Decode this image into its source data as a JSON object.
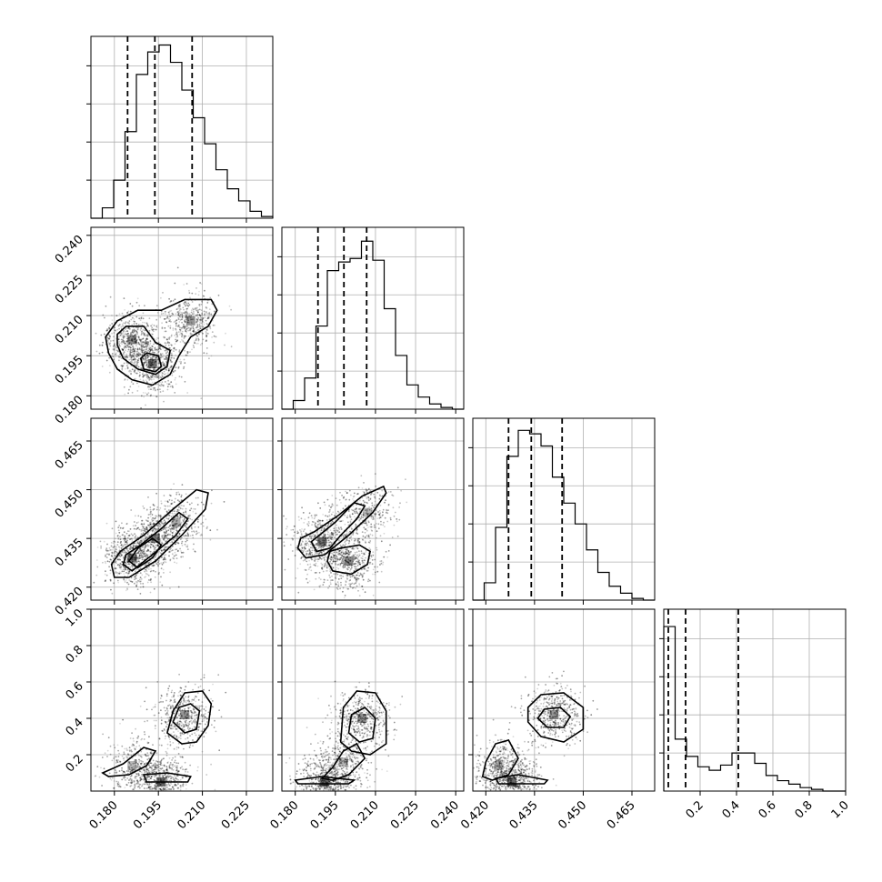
{
  "chart_data": {
    "type": "corner",
    "grid": true,
    "parameters": [
      {
        "range": [
          0.172,
          0.234
        ],
        "ticks": [
          "0.180",
          "0.195",
          "0.210",
          "0.225"
        ],
        "tick_values": [
          0.18,
          0.195,
          0.21,
          0.225
        ],
        "quantiles": [
          0.1845,
          0.1938,
          0.2065
        ],
        "histogram": [
          0.0,
          0.06,
          0.22,
          0.5,
          0.83,
          0.96,
          1.0,
          0.9,
          0.74,
          0.58,
          0.43,
          0.28,
          0.17,
          0.1,
          0.04,
          0.01
        ]
      },
      {
        "range": [
          0.175,
          0.243
        ],
        "ticks": [
          "0.180",
          "0.195",
          "0.210",
          "0.225",
          "0.240"
        ],
        "tick_values": [
          0.18,
          0.195,
          0.21,
          0.225,
          0.24
        ],
        "quantiles": [
          0.1885,
          0.1982,
          0.2067
        ],
        "histogram": [
          0.0,
          0.05,
          0.18,
          0.48,
          0.8,
          0.85,
          0.87,
          0.97,
          0.86,
          0.58,
          0.31,
          0.14,
          0.07,
          0.03,
          0.01,
          0.0
        ]
      },
      {
        "range": [
          0.416,
          0.472
        ],
        "ticks": [
          "0.420",
          "0.435",
          "0.450",
          "0.465"
        ],
        "tick_values": [
          0.42,
          0.435,
          0.45,
          0.465
        ],
        "quantiles": [
          0.427,
          0.434,
          0.4435
        ],
        "histogram": [
          0.0,
          0.1,
          0.42,
          0.83,
          0.98,
          0.96,
          0.89,
          0.71,
          0.56,
          0.44,
          0.29,
          0.16,
          0.08,
          0.04,
          0.01,
          0.0
        ]
      },
      {
        "range": [
          0.0,
          1.0
        ],
        "ticks": [
          "0.2",
          "0.4",
          "0.6",
          "0.8",
          "1.0"
        ],
        "tick_values": [
          0.2,
          0.4,
          0.6,
          0.8,
          1.0
        ],
        "y_ticks": [
          "0.2",
          "0.4",
          "0.6",
          "0.8",
          "1.0"
        ],
        "quantiles": [
          0.025,
          0.12,
          0.41
        ],
        "histogram": [
          0.95,
          0.3,
          0.2,
          0.14,
          0.12,
          0.15,
          0.22,
          0.22,
          0.16,
          0.09,
          0.06,
          0.04,
          0.02,
          0.01,
          0.0,
          0.0
        ]
      }
    ],
    "pairs": [
      {
        "x": 0,
        "y": 1,
        "modes": [
          {
            "x": 0.186,
            "y": 0.201,
            "w": 1.0
          },
          {
            "x": 0.193,
            "y": 0.192,
            "w": 1.2
          },
          {
            "x": 0.206,
            "y": 0.208,
            "w": 0.9
          }
        ],
        "contours": [
          [
            [
              0.178,
              0.196
            ],
            [
              0.181,
              0.19
            ],
            [
              0.186,
              0.186
            ],
            [
              0.193,
              0.184
            ],
            [
              0.199,
              0.188
            ],
            [
              0.202,
              0.195
            ],
            [
              0.206,
              0.202
            ],
            [
              0.212,
              0.206
            ],
            [
              0.215,
              0.212
            ],
            [
              0.213,
              0.216
            ],
            [
              0.204,
              0.216
            ],
            [
              0.196,
              0.212
            ],
            [
              0.188,
              0.212
            ],
            [
              0.181,
              0.208
            ],
            [
              0.177,
              0.202
            ]
          ],
          [
            [
              0.181,
              0.199
            ],
            [
              0.183,
              0.194
            ],
            [
              0.188,
              0.19
            ],
            [
              0.194,
              0.188
            ],
            [
              0.198,
              0.191
            ],
            [
              0.199,
              0.197
            ],
            [
              0.194,
              0.2
            ],
            [
              0.19,
              0.206
            ],
            [
              0.184,
              0.206
            ],
            [
              0.181,
              0.203
            ]
          ],
          [
            [
              0.189,
              0.194
            ],
            [
              0.19,
              0.19
            ],
            [
              0.194,
              0.189
            ],
            [
              0.196,
              0.191
            ],
            [
              0.195,
              0.195
            ],
            [
              0.191,
              0.196
            ]
          ]
        ]
      },
      {
        "x": 0,
        "y": 2,
        "modes": [
          {
            "x": 0.186,
            "y": 0.429,
            "w": 1.2
          },
          {
            "x": 0.194,
            "y": 0.435,
            "w": 1.0
          },
          {
            "x": 0.201,
            "y": 0.44,
            "w": 0.7
          }
        ],
        "contours": [
          [
            [
              0.179,
              0.427
            ],
            [
              0.18,
              0.423
            ],
            [
              0.185,
              0.423
            ],
            [
              0.194,
              0.428
            ],
            [
              0.203,
              0.436
            ],
            [
              0.211,
              0.444
            ],
            [
              0.212,
              0.449
            ],
            [
              0.208,
              0.45
            ],
            [
              0.2,
              0.444
            ],
            [
              0.19,
              0.436
            ],
            [
              0.182,
              0.431
            ]
          ],
          [
            [
              0.183,
              0.427
            ],
            [
              0.186,
              0.425
            ],
            [
              0.193,
              0.43
            ],
            [
              0.201,
              0.436
            ],
            [
              0.205,
              0.441
            ],
            [
              0.202,
              0.443
            ],
            [
              0.196,
              0.438
            ],
            [
              0.189,
              0.433
            ],
            [
              0.184,
              0.43
            ]
          ],
          [
            [
              0.185,
              0.428
            ],
            [
              0.188,
              0.426
            ],
            [
              0.193,
              0.429
            ],
            [
              0.196,
              0.433
            ],
            [
              0.193,
              0.435
            ],
            [
              0.188,
              0.432
            ]
          ]
        ]
      },
      {
        "x": 1,
        "y": 2,
        "modes": [
          {
            "x": 0.19,
            "y": 0.434,
            "w": 1.2
          },
          {
            "x": 0.2,
            "y": 0.428,
            "w": 1.0
          },
          {
            "x": 0.207,
            "y": 0.443,
            "w": 0.6
          }
        ],
        "contours": [
          [
            [
              0.181,
              0.432
            ],
            [
              0.184,
              0.429
            ],
            [
              0.191,
              0.43
            ],
            [
              0.2,
              0.436
            ],
            [
              0.209,
              0.443
            ],
            [
              0.214,
              0.449
            ],
            [
              0.213,
              0.451
            ],
            [
              0.205,
              0.448
            ],
            [
              0.196,
              0.442
            ],
            [
              0.187,
              0.437
            ],
            [
              0.182,
              0.435
            ]
          ],
          [
            [
              0.192,
              0.428
            ],
            [
              0.194,
              0.425
            ],
            [
              0.201,
              0.424
            ],
            [
              0.207,
              0.427
            ],
            [
              0.208,
              0.431
            ],
            [
              0.204,
              0.433
            ],
            [
              0.197,
              0.432
            ],
            [
              0.193,
              0.431
            ]
          ],
          [
            [
              0.186,
              0.434
            ],
            [
              0.188,
              0.431
            ],
            [
              0.193,
              0.432
            ],
            [
              0.197,
              0.436
            ],
            [
              0.203,
              0.441
            ],
            [
              0.206,
              0.445
            ],
            [
              0.202,
              0.446
            ],
            [
              0.195,
              0.44
            ],
            [
              0.189,
              0.436
            ]
          ]
        ]
      },
      {
        "x": 0,
        "y": 3,
        "modes": [
          {
            "x": 0.196,
            "y": 0.05,
            "w": 1.3
          },
          {
            "x": 0.186,
            "y": 0.14,
            "w": 0.6
          },
          {
            "x": 0.204,
            "y": 0.42,
            "w": 0.9
          }
        ],
        "contours": [
          [
            [
              0.198,
              0.32
            ],
            [
              0.203,
              0.26
            ],
            [
              0.208,
              0.27
            ],
            [
              0.212,
              0.36
            ],
            [
              0.213,
              0.48
            ],
            [
              0.21,
              0.55
            ],
            [
              0.204,
              0.54
            ],
            [
              0.2,
              0.44
            ]
          ],
          [
            [
              0.2,
              0.38
            ],
            [
              0.204,
              0.32
            ],
            [
              0.208,
              0.34
            ],
            [
              0.209,
              0.44
            ],
            [
              0.206,
              0.48
            ],
            [
              0.202,
              0.46
            ]
          ],
          [
            [
              0.176,
              0.1
            ],
            [
              0.183,
              0.15
            ],
            [
              0.19,
              0.24
            ],
            [
              0.194,
              0.22
            ],
            [
              0.191,
              0.14
            ],
            [
              0.185,
              0.09
            ],
            [
              0.178,
              0.08
            ]
          ],
          [
            [
              0.19,
              0.09
            ],
            [
              0.191,
              0.05
            ],
            [
              0.205,
              0.05
            ],
            [
              0.206,
              0.08
            ],
            [
              0.198,
              0.1
            ]
          ]
        ]
      },
      {
        "x": 1,
        "y": 3,
        "modes": [
          {
            "x": 0.191,
            "y": 0.05,
            "w": 1.3
          },
          {
            "x": 0.198,
            "y": 0.16,
            "w": 0.6
          },
          {
            "x": 0.205,
            "y": 0.4,
            "w": 0.9
          }
        ],
        "contours": [
          [
            [
              0.197,
              0.27
            ],
            [
              0.201,
              0.22
            ],
            [
              0.208,
              0.2
            ],
            [
              0.214,
              0.26
            ],
            [
              0.214,
              0.44
            ],
            [
              0.21,
              0.54
            ],
            [
              0.203,
              0.55
            ],
            [
              0.198,
              0.46
            ]
          ],
          [
            [
              0.2,
              0.32
            ],
            [
              0.204,
              0.27
            ],
            [
              0.209,
              0.29
            ],
            [
              0.21,
              0.4
            ],
            [
              0.206,
              0.46
            ],
            [
              0.201,
              0.42
            ]
          ],
          [
            [
              0.19,
              0.07
            ],
            [
              0.194,
              0.13
            ],
            [
              0.198,
              0.22
            ],
            [
              0.203,
              0.26
            ],
            [
              0.206,
              0.18
            ],
            [
              0.2,
              0.09
            ],
            [
              0.194,
              0.06
            ]
          ],
          [
            [
              0.18,
              0.06
            ],
            [
              0.181,
              0.04
            ],
            [
              0.2,
              0.04
            ],
            [
              0.202,
              0.06
            ],
            [
              0.19,
              0.08
            ]
          ]
        ]
      },
      {
        "x": 2,
        "y": 3,
        "modes": [
          {
            "x": 0.428,
            "y": 0.05,
            "w": 1.3
          },
          {
            "x": 0.424,
            "y": 0.14,
            "w": 0.6
          },
          {
            "x": 0.441,
            "y": 0.42,
            "w": 0.9
          }
        ],
        "contours": [
          [
            [
              0.433,
              0.38
            ],
            [
              0.437,
              0.3
            ],
            [
              0.444,
              0.27
            ],
            [
              0.45,
              0.34
            ],
            [
              0.45,
              0.46
            ],
            [
              0.444,
              0.54
            ],
            [
              0.437,
              0.53
            ],
            [
              0.433,
              0.46
            ]
          ],
          [
            [
              0.436,
              0.4
            ],
            [
              0.439,
              0.35
            ],
            [
              0.444,
              0.35
            ],
            [
              0.446,
              0.41
            ],
            [
              0.443,
              0.46
            ],
            [
              0.438,
              0.45
            ]
          ],
          [
            [
              0.419,
              0.08
            ],
            [
              0.42,
              0.16
            ],
            [
              0.423,
              0.26
            ],
            [
              0.427,
              0.28
            ],
            [
              0.43,
              0.18
            ],
            [
              0.427,
              0.09
            ],
            [
              0.422,
              0.06
            ]
          ],
          [
            [
              0.423,
              0.07
            ],
            [
              0.424,
              0.04
            ],
            [
              0.438,
              0.04
            ],
            [
              0.439,
              0.06
            ],
            [
              0.43,
              0.09
            ]
          ]
        ]
      }
    ]
  }
}
